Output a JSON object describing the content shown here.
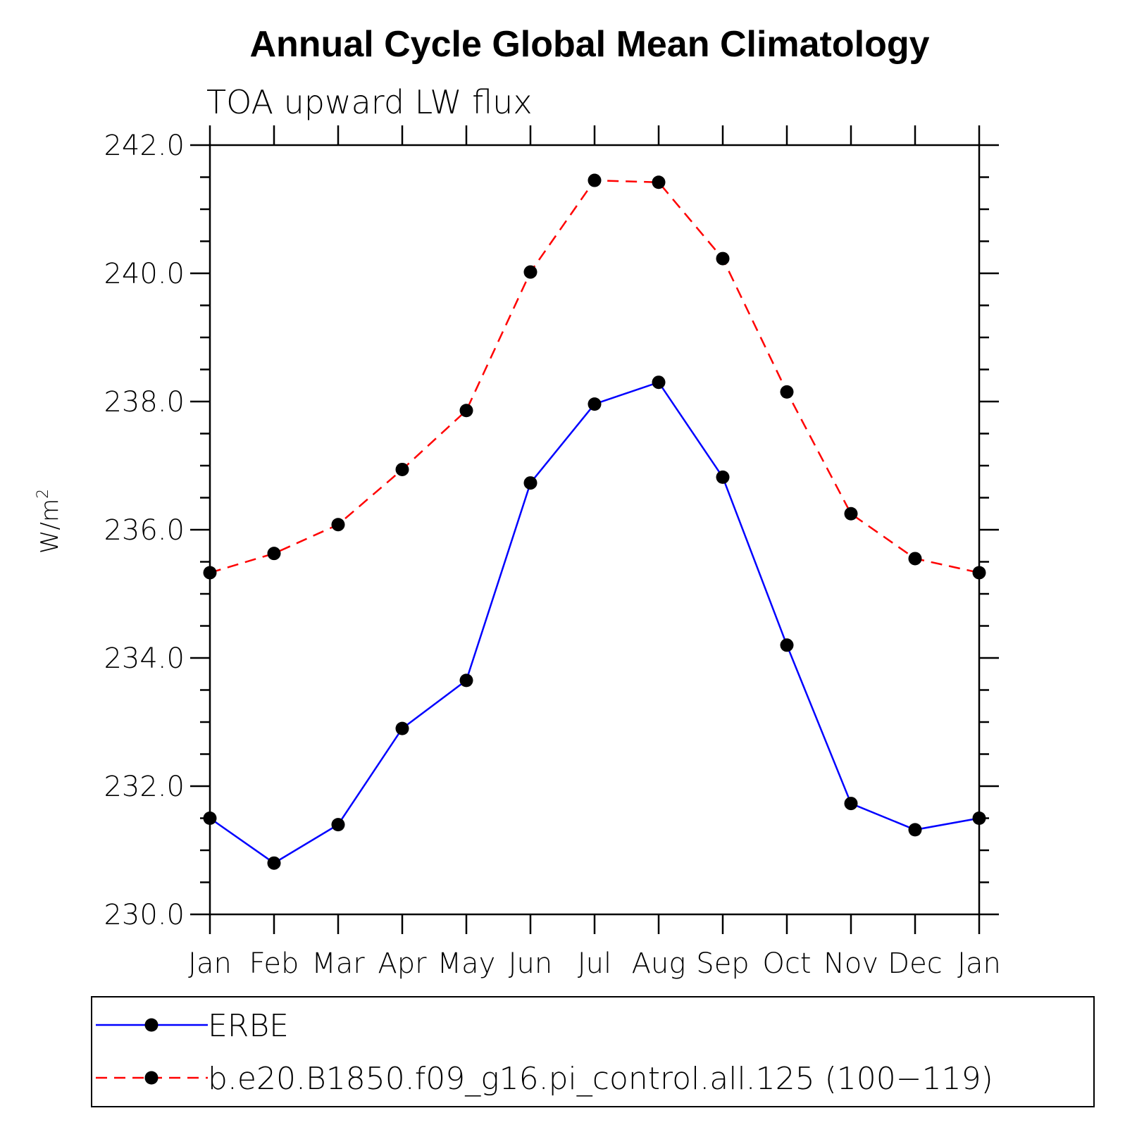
{
  "chart_data": {
    "type": "line",
    "title": "Annual Cycle Global Mean Climatology",
    "subtitle": "TOA upward LW flux",
    "xlabel": "",
    "ylabel": "W/m",
    "ylabel_superscript": "2",
    "categories": [
      "Jan",
      "Feb",
      "Mar",
      "Apr",
      "May",
      "Jun",
      "Jul",
      "Aug",
      "Sep",
      "Oct",
      "Nov",
      "Dec",
      "Jan"
    ],
    "ylim": [
      230.0,
      242.0
    ],
    "yticks": [
      230.0,
      232.0,
      234.0,
      236.0,
      238.0,
      240.0,
      242.0
    ],
    "ytick_labels": [
      "230.0",
      "232.0",
      "234.0",
      "236.0",
      "238.0",
      "240.0",
      "242.0"
    ],
    "y_minor_step": 0.5,
    "grid": false,
    "legend_position": "bottom",
    "series": [
      {
        "name": "ERBE",
        "color": "#0000ff",
        "style": "solid",
        "values": [
          231.5,
          230.8,
          231.4,
          232.9,
          233.65,
          236.73,
          237.96,
          238.3,
          236.82,
          234.2,
          231.73,
          231.32,
          231.5
        ]
      },
      {
        "name": "b.e20.B1850.f09_g16.pi_control.all.125 (100−119)",
        "color": "#ff0000",
        "style": "dashed",
        "values": [
          235.33,
          235.63,
          236.08,
          236.94,
          237.86,
          240.02,
          241.45,
          241.42,
          240.23,
          238.15,
          236.25,
          235.55,
          235.33
        ]
      }
    ]
  }
}
